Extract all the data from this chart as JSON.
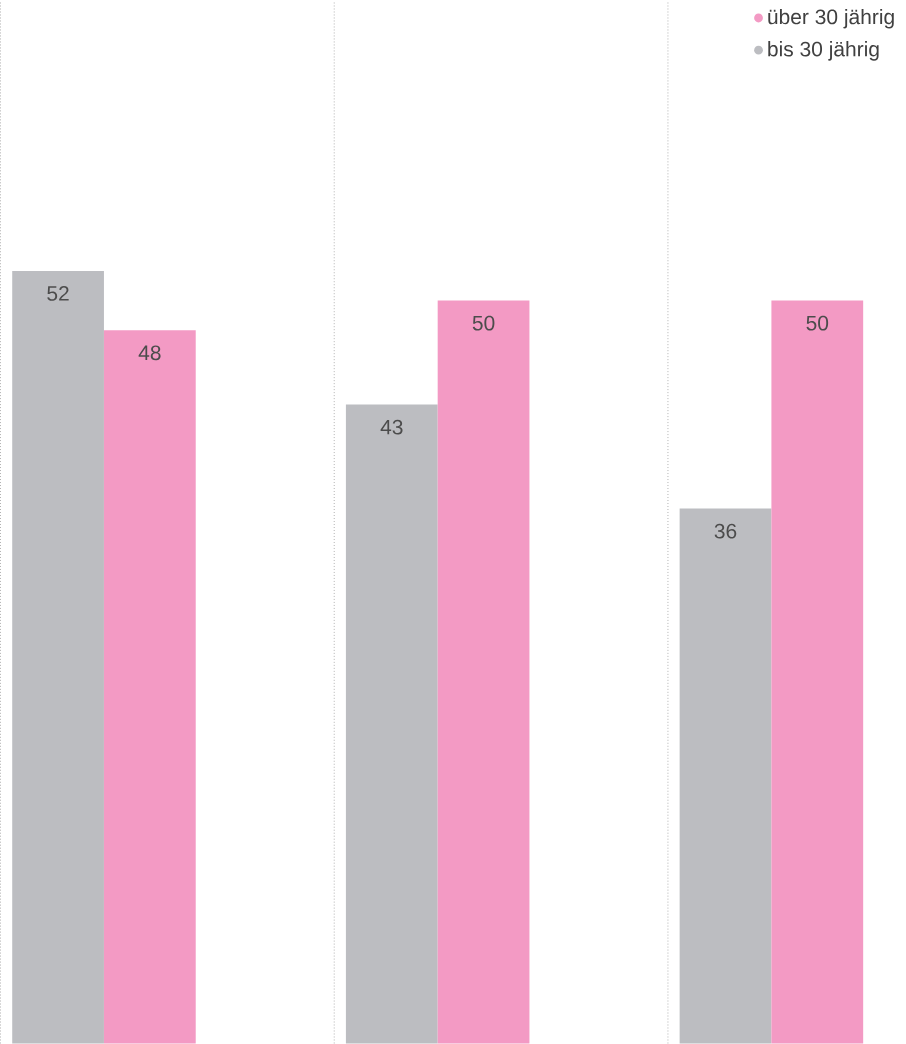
{
  "chart_data": {
    "type": "bar",
    "categories": [
      null,
      null,
      null
    ],
    "series": [
      {
        "name": "bis 30 jährig",
        "color": "#bcbdc1",
        "values": [
          52,
          43,
          36
        ]
      },
      {
        "name": "über 30 jährig",
        "color": "#f39ac4",
        "values": [
          48,
          50,
          50
        ]
      }
    ],
    "data_labels": true,
    "legend": "top right",
    "grid": "x"
  }
}
